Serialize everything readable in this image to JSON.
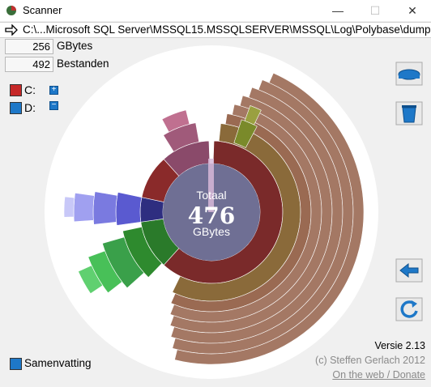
{
  "window": {
    "title": "Scanner",
    "minimize_label": "—",
    "maximize_label": "☐",
    "close_label": "✕"
  },
  "pathbar": {
    "arrow_icon": "right-arrow-icon",
    "path": "C:\\...Microsoft SQL Server\\MSSQL15.MSSQLSERVER\\MSSQL\\Log\\Polybase\\dump"
  },
  "stats": {
    "size_value": "256",
    "size_unit": "GBytes",
    "files_value": "492",
    "files_unit": "Bestanden"
  },
  "drives": [
    {
      "label": "C:",
      "color": "#c62828",
      "toggle": "+"
    },
    {
      "label": "D:",
      "color": "#1e78c8",
      "toggle": "−"
    }
  ],
  "center": {
    "top": "Totaal",
    "value": "476",
    "unit": "GBytes"
  },
  "footer": {
    "version": "Versie 2.13",
    "copyright": "(c) Steffen Gerlach 2012",
    "link": "On the web / Donate"
  },
  "summary": {
    "label": "Samenvatting"
  },
  "colors": {
    "accent": "#1e78c8",
    "center_disk": "#6f6f94",
    "brown": "#8a5a3c"
  }
}
